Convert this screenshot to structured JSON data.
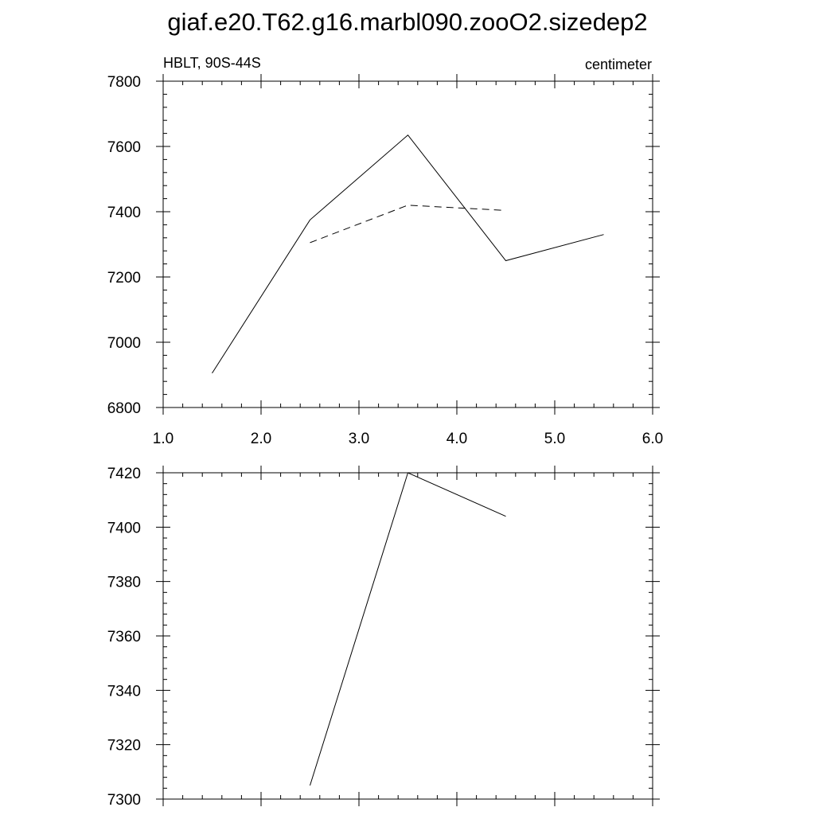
{
  "figure": {
    "title": "giaf.e20.T62.g16.marbl090.zooO2.sizedep2"
  },
  "chart_data": [
    {
      "type": "line",
      "left_label": "HBLT, 90S-44S",
      "right_label": "centimeter",
      "xlim": [
        1.0,
        6.0
      ],
      "ylim": [
        6800,
        7800
      ],
      "x_ticks": [
        1.0,
        2.0,
        3.0,
        4.0,
        5.0,
        6.0
      ],
      "x_tick_labels": [
        "1.0",
        "2.0",
        "3.0",
        "4.0",
        "5.0",
        "6.0"
      ],
      "y_ticks": [
        6800,
        7000,
        7200,
        7400,
        7600,
        7800
      ],
      "y_tick_labels": [
        "6800",
        "7000",
        "7200",
        "7400",
        "7600",
        "7800"
      ],
      "grid": false,
      "series": [
        {
          "style": "solid",
          "color": "#000000",
          "x": [
            1.5,
            2.5,
            3.5,
            4.5,
            5.5
          ],
          "values": [
            6905,
            7375,
            7635,
            7250,
            7330
          ]
        },
        {
          "style": "dashed",
          "color": "#000000",
          "x": [
            2.5,
            3.5,
            4.5
          ],
          "values": [
            7305,
            7420,
            7404
          ]
        }
      ]
    },
    {
      "type": "line",
      "xlim": [
        1.0,
        6.0
      ],
      "ylim": [
        7300,
        7420
      ],
      "x_ticks": [
        1.0,
        2.0,
        3.0,
        4.0,
        5.0,
        6.0
      ],
      "x_tick_labels": [],
      "y_ticks": [
        7300,
        7320,
        7340,
        7360,
        7380,
        7400,
        7420
      ],
      "y_tick_labels": [
        "7300",
        "7320",
        "7340",
        "7360",
        "7380",
        "7400",
        "7420"
      ],
      "grid": false,
      "series": [
        {
          "style": "solid",
          "color": "#000000",
          "x": [
            2.5,
            3.5,
            4.5
          ],
          "values": [
            7305,
            7420,
            7404
          ]
        }
      ]
    }
  ]
}
